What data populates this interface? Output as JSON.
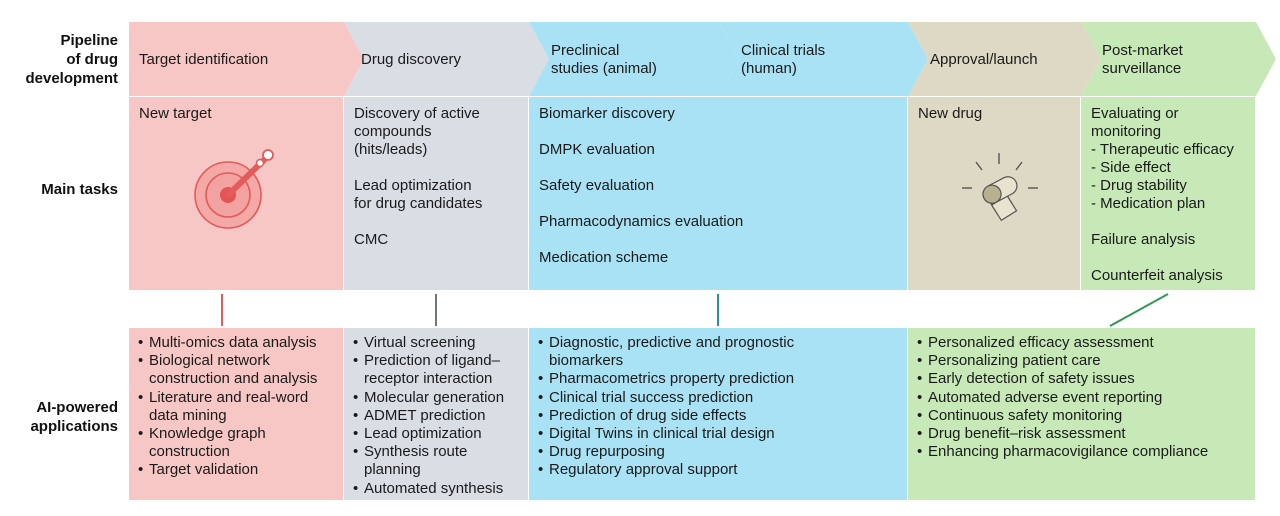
{
  "colors": {
    "pink": "#f7c7c5",
    "gray": "#d9dee5",
    "blue": "#a9e2f5",
    "tan": "#ddd9c4",
    "green": "#c7e9b8",
    "line_pink": "#e05a5a",
    "line_gray": "#6b7781",
    "line_teal": "#2a8f98",
    "line_green": "#2e9a52"
  },
  "row_labels": {
    "pipeline": [
      "Pipeline",
      "of drug",
      "development"
    ],
    "main_tasks": "Main tasks",
    "ai": [
      "AI-powered",
      "applications"
    ]
  },
  "stages": [
    {
      "lines": [
        "Target identification"
      ]
    },
    {
      "lines": [
        "Drug discovery"
      ]
    },
    {
      "lines": [
        "Preclinical",
        "studies (animal)"
      ]
    },
    {
      "lines": [
        "Clinical trials",
        "(human)"
      ]
    },
    {
      "lines": [
        "Approval/launch"
      ]
    },
    {
      "lines": [
        "Post-market",
        "surveillance"
      ]
    }
  ],
  "tasks": {
    "target": [
      "New target"
    ],
    "discovery": [
      [
        "Discovery of active",
        "compounds",
        "(hits/leads)"
      ],
      [
        "Lead optimization",
        "for drug candidates"
      ],
      [
        "CMC"
      ]
    ],
    "preclinical_clinical": [
      "Biomarker discovery",
      "DMPK evaluation",
      "Safety evaluation",
      "Pharmacodynamics evaluation",
      "Medication scheme"
    ],
    "approval": [
      "New drug"
    ],
    "postmarket": [
      [
        "Evaluating or",
        "monitoring",
        "- Therapeutic efficacy",
        "- Side effect",
        "- Drug stability",
        "- Medication plan"
      ],
      [
        "Failure analysis"
      ],
      [
        "Counterfeit analysis"
      ]
    ]
  },
  "icons": {
    "target": "target-dart-icon",
    "pill": "pill-capsule-icon"
  },
  "ai": {
    "target": [
      [
        "Multi-omics data analysis"
      ],
      [
        "Biological network",
        "construction and analysis"
      ],
      [
        "Literature and real-word",
        "data mining"
      ],
      [
        "Knowledge graph",
        "construction"
      ],
      [
        "Target validation"
      ]
    ],
    "discovery": [
      [
        "Virtual screening"
      ],
      [
        "Prediction of ligand–",
        "receptor interaction"
      ],
      [
        "Molecular generation"
      ],
      [
        "ADMET prediction"
      ],
      [
        "Lead optimization"
      ],
      [
        "Synthesis route",
        "planning"
      ],
      [
        "Automated synthesis"
      ]
    ],
    "clinical": [
      [
        "Diagnostic, predictive and prognostic",
        "biomarkers"
      ],
      [
        "Pharmacometrics property prediction"
      ],
      [
        "Clinical trial success prediction"
      ],
      [
        "Prediction of drug side effects"
      ],
      [
        "Digital Twins in clinical trial design"
      ],
      [
        "Drug repurposing"
      ],
      [
        "Regulatory approval support"
      ]
    ],
    "postmarket": [
      [
        "Personalized efficacy assessment"
      ],
      [
        "Personalizing patient care"
      ],
      [
        "Early detection of safety issues"
      ],
      [
        "Automated adverse event reporting"
      ],
      [
        "Continuous safety monitoring"
      ],
      [
        "Drug benefit–risk assessment"
      ],
      [
        "Enhancing pharmacovigilance compliance"
      ]
    ]
  }
}
